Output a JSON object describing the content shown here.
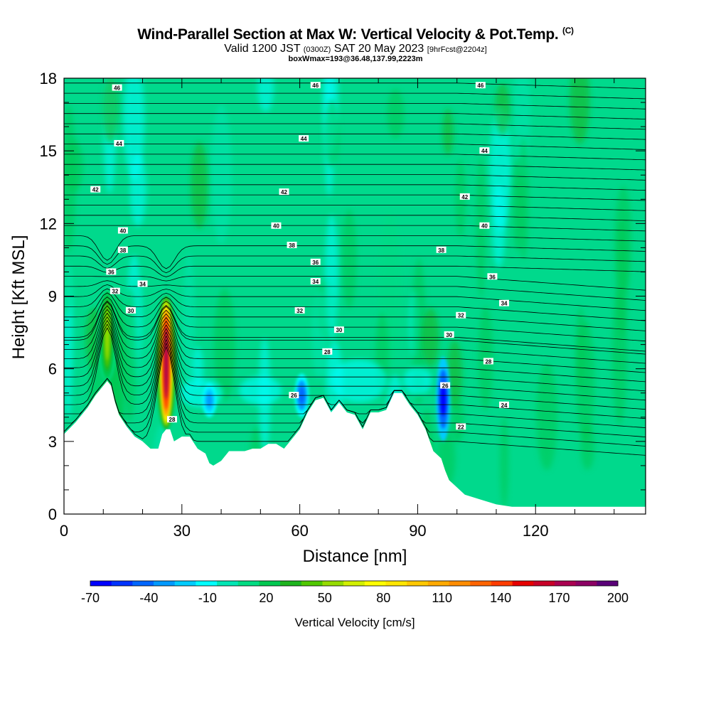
{
  "title": {
    "main": "Wind-Parallel Section at Max W: Vertical Velocity & Pot.Temp.",
    "copyright": "(C)",
    "valid_prefix": "Valid 1200 JST",
    "valid_utc": "(0300Z)",
    "valid_date": "SAT 20 May 2023",
    "forecast": "[9hrFcst@2204z]",
    "box": "boxWmax=193@36.48,137.99,2223m"
  },
  "chart_data": {
    "type": "heatmap",
    "xlabel": "Distance [nm]",
    "ylabel": "Height [Kft MSL]",
    "xlim": [
      0,
      148
    ],
    "ylim": [
      0,
      18
    ],
    "x_ticks": [
      0,
      30,
      60,
      90,
      120
    ],
    "y_ticks": [
      0,
      3,
      6,
      9,
      12,
      15,
      18
    ],
    "colorbar": {
      "title": "Vertical Velocity [cm/s]",
      "tick_labels": [
        "-70",
        "-40",
        "-10",
        "20",
        "50",
        "80",
        "110",
        "140",
        "170",
        "200"
      ],
      "tick_values": [
        -70,
        -40,
        -10,
        20,
        50,
        80,
        110,
        140,
        170,
        200
      ],
      "colors": [
        "#0000ff",
        "#0033ff",
        "#0066ff",
        "#0099ff",
        "#00ccff",
        "#00ffff",
        "#00e6b4",
        "#00dc82",
        "#00c850",
        "#1eb41e",
        "#50c800",
        "#96dc00",
        "#d2f000",
        "#ffff00",
        "#ffe600",
        "#ffc800",
        "#ffaa00",
        "#ff8c00",
        "#ff6400",
        "#ff3c00",
        "#e60000",
        "#c80028",
        "#aa0050",
        "#8c0064",
        "#5a0078"
      ]
    },
    "terrain_kft": [
      [
        0,
        3.3
      ],
      [
        3,
        3.8
      ],
      [
        6,
        4.4
      ],
      [
        8,
        4.9
      ],
      [
        10,
        5.3
      ],
      [
        11,
        5.5
      ],
      [
        12,
        5.3
      ],
      [
        13,
        4.6
      ],
      [
        14,
        4.1
      ],
      [
        16,
        3.6
      ],
      [
        18,
        3.2
      ],
      [
        20,
        3.0
      ],
      [
        22,
        2.7
      ],
      [
        24,
        2.7
      ],
      [
        25,
        3.3
      ],
      [
        26,
        3.5
      ],
      [
        27,
        3.5
      ],
      [
        28,
        3.0
      ],
      [
        30,
        3.2
      ],
      [
        32,
        3.2
      ],
      [
        34,
        2.7
      ],
      [
        36,
        2.5
      ],
      [
        37,
        2.1
      ],
      [
        38,
        2.0
      ],
      [
        40,
        2.2
      ],
      [
        42,
        2.6
      ],
      [
        44,
        2.6
      ],
      [
        46,
        2.6
      ],
      [
        48,
        2.7
      ],
      [
        50,
        2.7
      ],
      [
        52,
        2.9
      ],
      [
        54,
        2.9
      ],
      [
        56,
        2.7
      ],
      [
        58,
        3.1
      ],
      [
        60,
        3.5
      ],
      [
        62,
        4.2
      ],
      [
        64,
        4.7
      ],
      [
        66,
        4.8
      ],
      [
        68,
        4.2
      ],
      [
        70,
        4.6
      ],
      [
        72,
        4.2
      ],
      [
        74,
        4.1
      ],
      [
        76,
        3.5
      ],
      [
        78,
        4.2
      ],
      [
        80,
        4.2
      ],
      [
        82,
        4.3
      ],
      [
        84,
        5.0
      ],
      [
        86,
        5.0
      ],
      [
        88,
        4.5
      ],
      [
        90,
        4.1
      ],
      [
        92,
        3.5
      ],
      [
        94,
        2.6
      ],
      [
        96,
        2.3
      ],
      [
        97,
        1.8
      ],
      [
        98,
        1.4
      ],
      [
        100,
        1.1
      ],
      [
        102,
        0.8
      ],
      [
        106,
        0.6
      ],
      [
        110,
        0.4
      ],
      [
        114,
        0.3
      ],
      [
        120,
        0.3
      ],
      [
        130,
        0.3
      ],
      [
        148,
        0.3
      ]
    ],
    "updrafts": [
      {
        "x": 26.0,
        "y0": 3.5,
        "y1": 9.0,
        "peak_cm_s": 193
      },
      {
        "x": 11.0,
        "y0": 5.5,
        "y1": 9.3,
        "peak_cm_s": 60
      }
    ],
    "downdrafts": [
      {
        "x": 96.5,
        "y0": 3.0,
        "y1": 6.5,
        "min_cm_s": -70
      },
      {
        "x": 60.5,
        "y0": 4.0,
        "y1": 5.8,
        "min_cm_s": -45
      },
      {
        "x": 37.0,
        "y0": 4.0,
        "y1": 5.4,
        "min_cm_s": -35
      }
    ],
    "theta_labels": [
      {
        "text": "46",
        "x": 13.5,
        "y": 17.6
      },
      {
        "text": "46",
        "x": 64,
        "y": 17.7
      },
      {
        "text": "46",
        "x": 106,
        "y": 17.7
      },
      {
        "text": "44",
        "x": 14,
        "y": 15.3
      },
      {
        "text": "44",
        "x": 61,
        "y": 15.5
      },
      {
        "text": "44",
        "x": 107,
        "y": 15.0
      },
      {
        "text": "42",
        "x": 8,
        "y": 13.4
      },
      {
        "text": "42",
        "x": 56,
        "y": 13.3
      },
      {
        "text": "42",
        "x": 102,
        "y": 13.1
      },
      {
        "text": "40",
        "x": 15,
        "y": 11.7
      },
      {
        "text": "40",
        "x": 54,
        "y": 11.9
      },
      {
        "text": "40",
        "x": 107,
        "y": 11.9
      },
      {
        "text": "38",
        "x": 15,
        "y": 10.9
      },
      {
        "text": "38",
        "x": 58,
        "y": 11.1
      },
      {
        "text": "38",
        "x": 96,
        "y": 10.9
      },
      {
        "text": "36",
        "x": 12,
        "y": 10.0
      },
      {
        "text": "36",
        "x": 64,
        "y": 10.4
      },
      {
        "text": "36",
        "x": 109,
        "y": 9.8
      },
      {
        "text": "34",
        "x": 20,
        "y": 9.5
      },
      {
        "text": "34",
        "x": 64,
        "y": 9.6
      },
      {
        "text": "34",
        "x": 112,
        "y": 8.7
      },
      {
        "text": "32",
        "x": 13,
        "y": 9.2
      },
      {
        "text": "32",
        "x": 60,
        "y": 8.4
      },
      {
        "text": "32",
        "x": 101,
        "y": 8.2
      },
      {
        "text": "30",
        "x": 17,
        "y": 8.4
      },
      {
        "text": "30",
        "x": 70,
        "y": 7.6
      },
      {
        "text": "30",
        "x": 98,
        "y": 7.4
      },
      {
        "text": "28",
        "x": 67,
        "y": 6.7
      },
      {
        "text": "28",
        "x": 108,
        "y": 6.3
      },
      {
        "text": "26",
        "x": 58.5,
        "y": 4.9
      },
      {
        "text": "26",
        "x": 97,
        "y": 5.3
      },
      {
        "text": "28",
        "x": 27.5,
        "y": 3.9
      },
      {
        "text": "24",
        "x": 112,
        "y": 4.5
      },
      {
        "text": "22",
        "x": 101,
        "y": 3.6
      }
    ]
  }
}
